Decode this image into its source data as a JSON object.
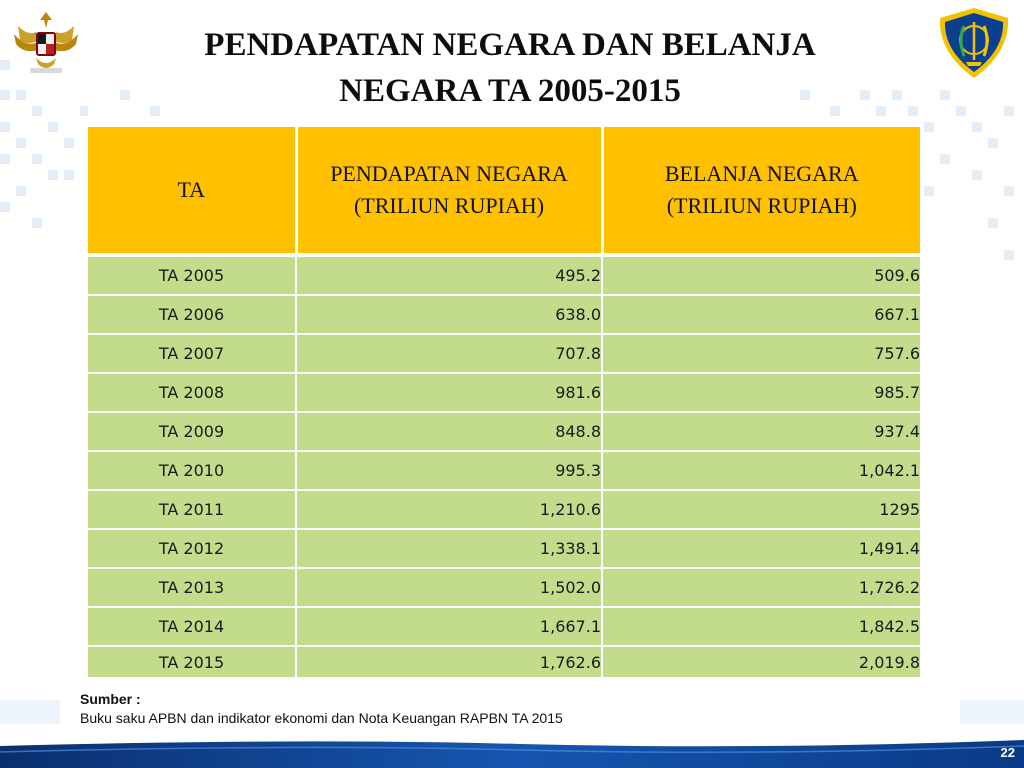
{
  "title": {
    "line1": "PENDAPATAN NEGARA DAN BELANJA",
    "line2": "NEGARA TA 2005-2015"
  },
  "table": {
    "headers": {
      "ta": "TA",
      "pendapatan_line1": "PENDAPATAN NEGARA",
      "pendapatan_line2": "(TRILIUN RUPIAH)",
      "belanja_line1": "BELANJA NEGARA",
      "belanja_line2": "(TRILIUN RUPIAH)"
    },
    "rows": [
      {
        "ta": "TA 2005",
        "pendapatan": "495.2",
        "belanja": "509.6"
      },
      {
        "ta": "TA 2006",
        "pendapatan": "638.0",
        "belanja": "667.1"
      },
      {
        "ta": "TA 2007",
        "pendapatan": "707.8",
        "belanja": "757.6"
      },
      {
        "ta": "TA 2008",
        "pendapatan": "981.6",
        "belanja": "985.7"
      },
      {
        "ta": "TA 2009",
        "pendapatan": "848.8",
        "belanja": "937.4"
      },
      {
        "ta": "TA 2010",
        "pendapatan": "995.3",
        "belanja": "1,042.1"
      },
      {
        "ta": "TA 2011",
        "pendapatan": "1,210.6",
        "belanja": "1295"
      },
      {
        "ta": "TA 2012",
        "pendapatan": "1,338.1",
        "belanja": "1,491.4"
      },
      {
        "ta": "TA 2013",
        "pendapatan": "1,502.0",
        "belanja": "1,726.2"
      },
      {
        "ta": "TA 2014",
        "pendapatan": "1,667.1",
        "belanja": "1,842.5"
      },
      {
        "ta": "TA 2015",
        "pendapatan": "1,762.6",
        "belanja": "2,019.8"
      }
    ]
  },
  "source": {
    "label": "Sumber :",
    "text": "Buku saku APBN  dan indikator ekonomi dan Nota Keuangan RAPBN TA 2015"
  },
  "page_number": "22",
  "icons": {
    "left_emblem": "garuda-emblem-icon",
    "right_emblem": "ministry-of-finance-logo-icon"
  },
  "colors": {
    "header_bg": "#ffc000",
    "row_bg": "#c3dc8c",
    "footer_blue": "#0b3f8f"
  }
}
